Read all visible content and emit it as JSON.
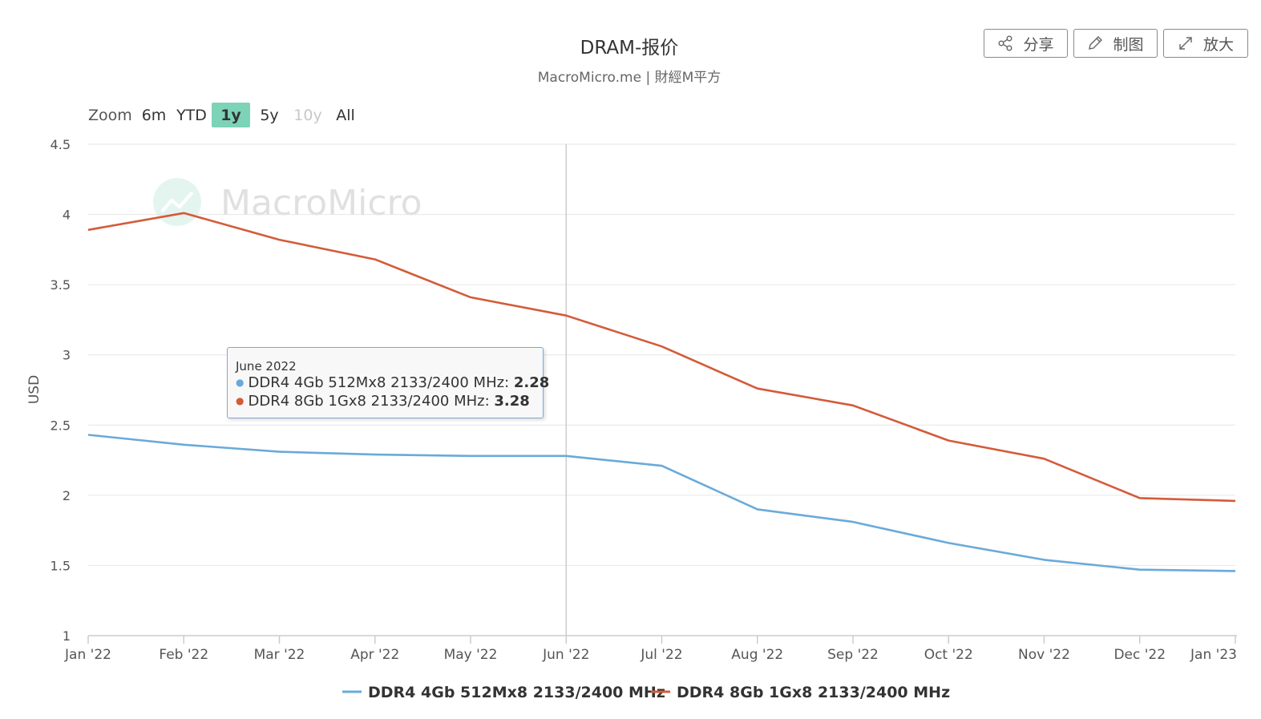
{
  "toolbar": {
    "share_label": "分享",
    "draw_label": "制图",
    "enlarge_label": "放大"
  },
  "zoom": {
    "label": "Zoom",
    "options": [
      "6m",
      "YTD",
      "1y",
      "5y",
      "10y",
      "All"
    ],
    "selected": "1y",
    "disabled": [
      "10y"
    ]
  },
  "watermark": "MacroMicro",
  "tooltip": {
    "header": "June 2022",
    "rows": [
      {
        "name": "DDR4 4Gb 512Mx8 2133/2400 MHz",
        "value": "2.28",
        "color": "#6aaad9"
      },
      {
        "name": "DDR4 8Gb 1Gx8 2133/2400 MHz",
        "value": "3.28",
        "color": "#d45b3a"
      }
    ]
  },
  "chart_data": {
    "type": "line",
    "title": "DRAM-报价",
    "subtitle": "MacroMicro.me | 財經M平方",
    "ylabel": "USD",
    "xlabel": "",
    "ylim": [
      1,
      4.5
    ],
    "yticks": [
      1,
      1.5,
      2,
      2.5,
      3,
      3.5,
      4,
      4.5
    ],
    "ytick_labels": [
      "1",
      "1.5",
      "2",
      "2.5",
      "3",
      "3.5",
      "4",
      "4.5"
    ],
    "grid": true,
    "legend": "bottom-center",
    "categories": [
      "Jan '22",
      "Feb '22",
      "Mar '22",
      "Apr '22",
      "May '22",
      "Jun '22",
      "Jul '22",
      "Aug '22",
      "Sep '22",
      "Oct '22",
      "Nov '22",
      "Dec '22",
      "Jan '23"
    ],
    "highlight_category": "Jun '22",
    "series": [
      {
        "name": "DDR4 4Gb 512Mx8 2133/2400 MHz",
        "color": "#6aaad9",
        "values": [
          2.43,
          2.36,
          2.31,
          2.29,
          2.28,
          2.28,
          2.21,
          1.9,
          1.81,
          1.66,
          1.54,
          1.47,
          1.46
        ]
      },
      {
        "name": "DDR4 8Gb 1Gx8 2133/2400 MHz",
        "color": "#d45b3a",
        "values": [
          3.89,
          4.01,
          3.82,
          3.68,
          3.41,
          3.28,
          3.06,
          2.76,
          2.64,
          2.39,
          2.26,
          1.98,
          1.96
        ]
      }
    ]
  }
}
